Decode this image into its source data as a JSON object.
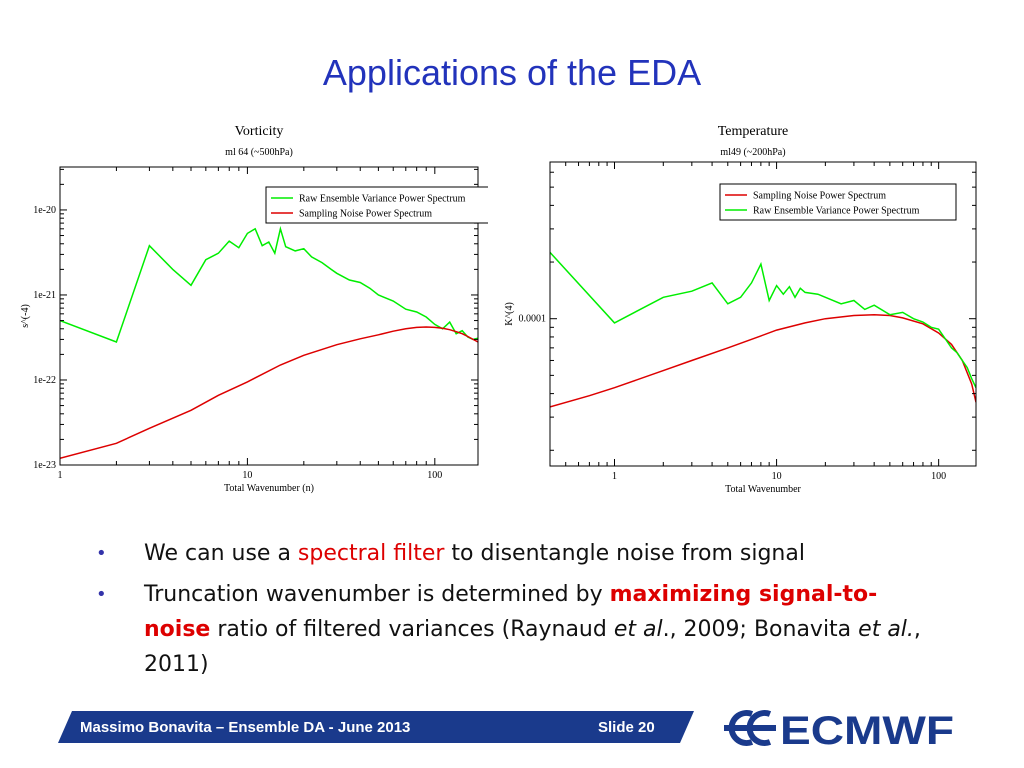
{
  "slide": {
    "title": "Applications of the EDA",
    "footer": "Massimo Bonavita –  Ensemble DA - June 2013",
    "slide_number": "Slide 20",
    "logo_text": "ECMWF"
  },
  "bullets": [
    {
      "segments": [
        {
          "text": "We can use a ",
          "style": "normal"
        },
        {
          "text": "spectral filter",
          "style": "highlight"
        },
        {
          "text": " to disentangle noise from signal",
          "style": "normal"
        }
      ]
    },
    {
      "segments": [
        {
          "text": "Truncation wavenumber is determined by ",
          "style": "normal"
        },
        {
          "text": "maximizing signal-to-noise",
          "style": "highlight-bold"
        },
        {
          "text": " ratio of filtered variances (Raynaud ",
          "style": "normal"
        },
        {
          "text": "et al",
          "style": "italic"
        },
        {
          "text": "., 2009; Bonavita ",
          "style": "normal"
        },
        {
          "text": "et al.",
          "style": "italic"
        },
        {
          "text": ", 2011)",
          "style": "normal"
        }
      ]
    }
  ],
  "colors": {
    "title": "#2233bb",
    "highlight": "#dd0000",
    "footer_band": "#1a3a8c",
    "raw_series": "#00ee00",
    "noise_series": "#dd0000",
    "logo": "#1a3a8c"
  },
  "chart_data": [
    {
      "type": "line",
      "title": "Vorticity",
      "subtitle": "ml 64 (~500hPa)",
      "xlabel": "Total Wavenumber (n)",
      "ylabel": "s^(-4)",
      "x_scale": "log",
      "y_scale": "log",
      "xlim": [
        1,
        170
      ],
      "ylim": [
        1e-23,
        3.2e-20
      ],
      "x_ticks": [
        {
          "v": 1,
          "label": "1"
        },
        {
          "v": 10,
          "label": "10"
        },
        {
          "v": 100,
          "label": "100"
        }
      ],
      "y_ticks": [
        {
          "v": 1e-23,
          "label": "1e-23"
        },
        {
          "v": 1e-22,
          "label": "1e-22"
        },
        {
          "v": 1e-21,
          "label": "1e-21"
        },
        {
          "v": 1e-20,
          "label": "1e-20"
        }
      ],
      "legend_position": "top-right",
      "series": [
        {
          "name": "Raw Ensemble Variance Power Spectrum",
          "color": "#00ee00",
          "x": [
            1,
            2,
            3,
            4,
            5,
            6,
            7,
            8,
            9,
            10,
            11,
            12,
            13,
            14,
            15,
            16,
            18,
            20,
            22,
            25,
            28,
            30,
            35,
            40,
            45,
            50,
            60,
            70,
            80,
            90,
            100,
            110,
            120,
            130,
            140,
            150,
            160,
            170
          ],
          "y": [
            5e-22,
            2.8e-22,
            3.8e-21,
            2e-21,
            1.3e-21,
            2.6e-21,
            3.1e-21,
            4.3e-21,
            3.6e-21,
            5.3e-21,
            6e-21,
            3.8e-21,
            4.2e-21,
            3.1e-21,
            6e-21,
            3.7e-21,
            3.3e-21,
            3.5e-21,
            2.8e-21,
            2.4e-21,
            2e-21,
            1.8e-21,
            1.5e-21,
            1.4e-21,
            1.2e-21,
            1e-21,
            8.5e-22,
            6.8e-22,
            6.3e-22,
            5.5e-22,
            4.5e-22,
            4e-22,
            4.8e-22,
            3.5e-22,
            3.8e-22,
            3.2e-22,
            3e-22,
            3.1e-22
          ]
        },
        {
          "name": "Sampling Noise Power Spectrum",
          "color": "#dd0000",
          "x": [
            1,
            2,
            3,
            5,
            7,
            10,
            15,
            20,
            30,
            40,
            50,
            60,
            70,
            80,
            90,
            100,
            110,
            120,
            130,
            140,
            150,
            160,
            170
          ],
          "y": [
            1.2e-23,
            1.8e-23,
            2.7e-23,
            4.4e-23,
            6.6e-23,
            9.5e-23,
            1.5e-22,
            1.95e-22,
            2.6e-22,
            3.05e-22,
            3.4e-22,
            3.75e-22,
            4e-22,
            4.15e-22,
            4.2e-22,
            4.15e-22,
            4.05e-22,
            3.9e-22,
            3.7e-22,
            3.5e-22,
            3.25e-22,
            3e-22,
            2.8e-22
          ]
        }
      ]
    },
    {
      "type": "line",
      "title": "Temperature",
      "subtitle": "ml49 (~200hPa)",
      "xlabel": "Total Wavenumber",
      "ylabel": "K^(4)",
      "x_scale": "log",
      "y_scale": "log",
      "xlim": [
        0.4,
        170
      ],
      "ylim": [
        1.65e-05,
        0.00068
      ],
      "x_ticks": [
        {
          "v": 1,
          "label": "1"
        },
        {
          "v": 10,
          "label": "10"
        },
        {
          "v": 100,
          "label": "100"
        }
      ],
      "y_ticks": [
        {
          "v": 0.0001,
          "label": "0.0001"
        }
      ],
      "legend_position": "top-right",
      "series": [
        {
          "name": "Sampling Noise Power Spectrum",
          "color": "#dd0000",
          "x": [
            0.4,
            0.7,
            1,
            2,
            3,
            5,
            8,
            10,
            15,
            20,
            30,
            40,
            50,
            60,
            80,
            100,
            120,
            140,
            160,
            170
          ],
          "y": [
            3.4e-05,
            3.9e-05,
            4.3e-05,
            5.3e-05,
            6e-05,
            7e-05,
            8.1e-05,
            8.7e-05,
            9.5e-05,
            0.0001,
            0.000104,
            0.000105,
            0.000104,
            0.000101,
            9.4e-05,
            8.4e-05,
            7.3e-05,
            6e-05,
            4.5e-05,
            3.6e-05
          ]
        },
        {
          "name": "Raw Ensemble Variance Power Spectrum",
          "color": "#00ee00",
          "x": [
            0.4,
            1,
            2,
            3,
            4,
            5,
            6,
            7,
            8,
            9,
            10,
            11,
            12,
            13,
            14,
            15,
            18,
            20,
            25,
            30,
            35,
            40,
            50,
            60,
            70,
            80,
            90,
            100,
            110,
            120,
            130,
            140,
            150,
            160,
            170
          ],
          "y": [
            0.000225,
            9.5e-05,
            0.00013,
            0.00014,
            0.000155,
            0.00012,
            0.00013,
            0.000155,
            0.000195,
            0.000125,
            0.00015,
            0.000135,
            0.000148,
            0.00013,
            0.000145,
            0.000138,
            0.000135,
            0.00013,
            0.00012,
            0.000125,
            0.000112,
            0.000118,
            0.000105,
            0.000108,
            0.0001,
            9.6e-05,
            9e-05,
            8.8e-05,
            7.8e-05,
            7e-05,
            6.6e-05,
            6e-05,
            5.5e-05,
            4.8e-05,
            4.3e-05
          ]
        }
      ]
    }
  ]
}
